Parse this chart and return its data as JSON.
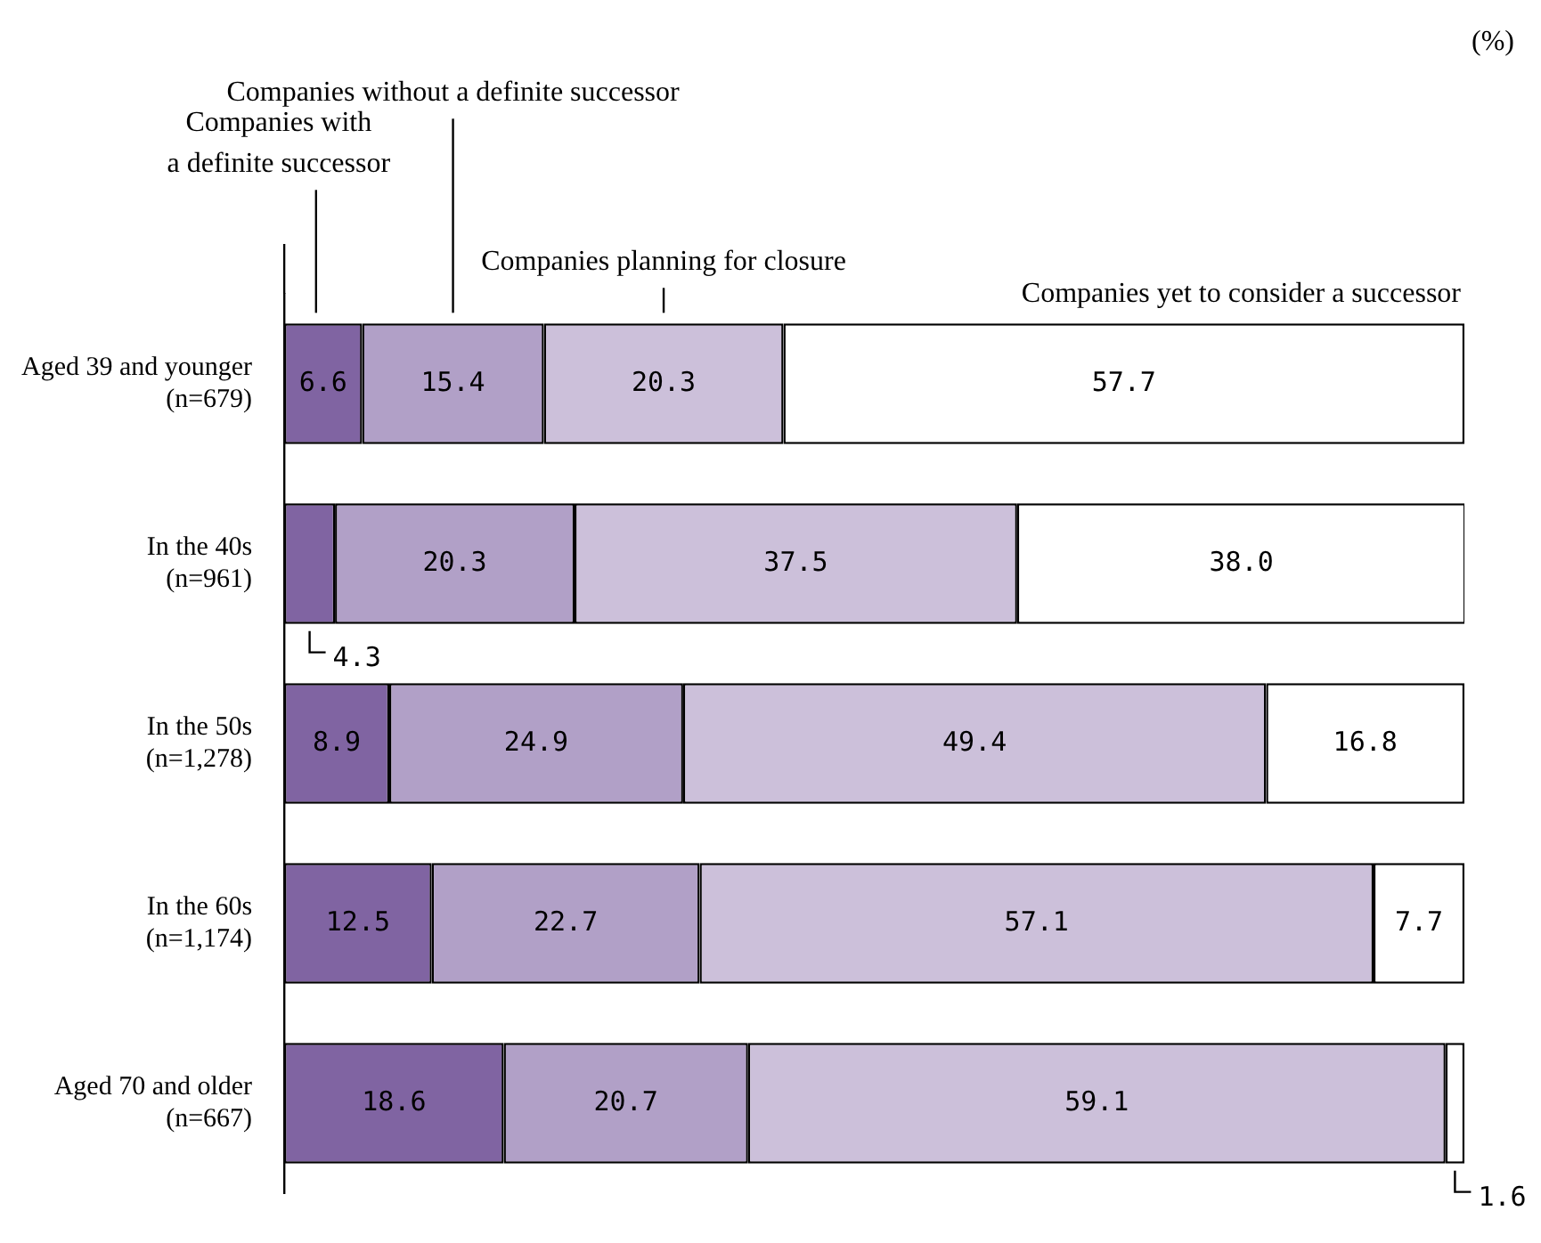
{
  "chart_data": {
    "type": "bar",
    "orientation": "horizontal",
    "stacked": true,
    "categories": [
      "Aged 39 and younger\n(n=679)",
      "In the 40s\n(n=961)",
      "In the 50s\n(n=1,278)",
      "In the 60s\n(n=1,174)",
      "Aged 70 and older\n(n=667)"
    ],
    "series": [
      {
        "name": "Companies with\na definite successor",
        "color": "#8064a2",
        "values": [
          6.6,
          4.3,
          8.9,
          12.5,
          18.6
        ],
        "value_labels": [
          "6.6",
          "4.3",
          "8.9",
          "12.5",
          "18.6"
        ]
      },
      {
        "name": "Companies without a definite successor",
        "color": "#b1a0c7",
        "values": [
          15.4,
          20.3,
          24.9,
          22.7,
          20.7
        ],
        "value_labels": [
          "15.4",
          "20.3",
          "24.9",
          "22.7",
          "20.7"
        ]
      },
      {
        "name": "Companies planning for closure",
        "color": "#ccc0da",
        "values": [
          20.3,
          37.5,
          49.4,
          57.1,
          59.1
        ],
        "value_labels": [
          "20.3",
          "37.5",
          "49.4",
          "57.1",
          "59.1"
        ]
      },
      {
        "name": "Companies yet to consider a successor",
        "color": "#ffffff",
        "values": [
          57.7,
          38.0,
          16.8,
          7.7,
          1.6
        ],
        "value_labels": [
          "57.7",
          "38.0",
          "16.8",
          "7.7",
          "1.6"
        ]
      }
    ],
    "xlim": [
      0,
      100
    ],
    "tick_labels": "y",
    "legend": false,
    "grid": false,
    "annotations": [
      "(%)"
    ]
  }
}
